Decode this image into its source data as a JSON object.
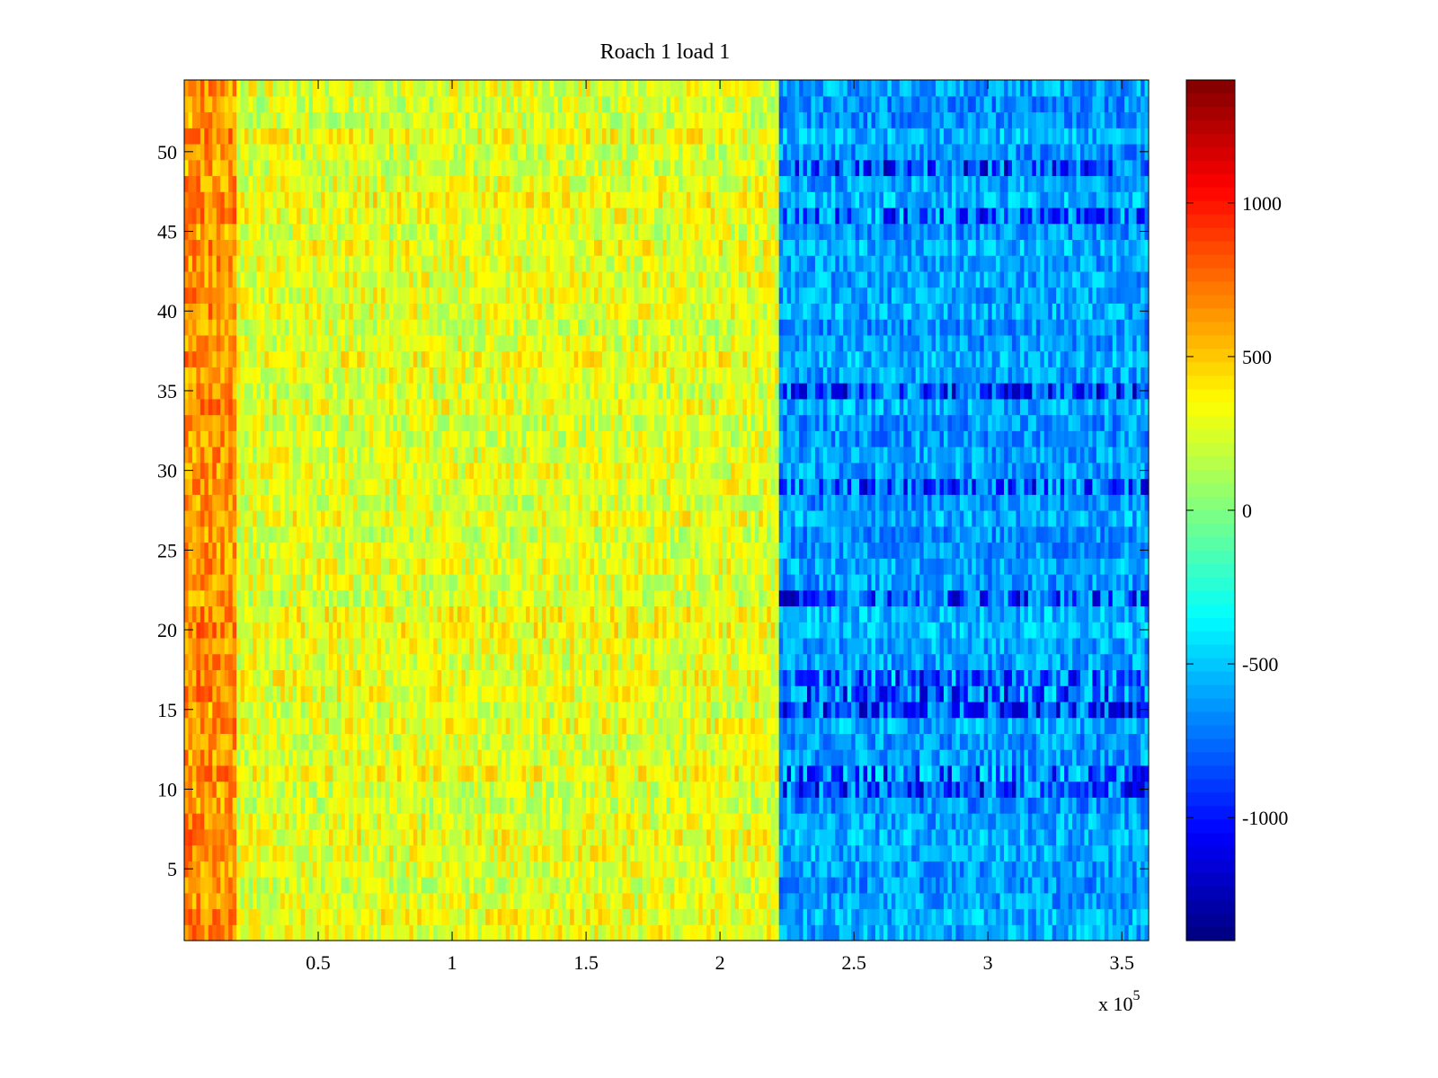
{
  "chart_data": {
    "type": "heatmap",
    "title": "Roach 1 load 1",
    "xlabel": "",
    "ylabel": "",
    "x_exponent_label": {
      "prefix": "x 10",
      "exponent": "5"
    },
    "xlim": [
      0,
      3.6
    ],
    "ylim": [
      0.5,
      54.5
    ],
    "x_ticks": [
      0.5,
      1,
      1.5,
      2,
      2.5,
      3,
      3.5
    ],
    "x_tick_labels": [
      "0.5",
      "1",
      "1.5",
      "2",
      "2.5",
      "3",
      "3.5"
    ],
    "y_ticks": [
      5,
      10,
      15,
      20,
      25,
      30,
      35,
      40,
      45,
      50
    ],
    "y_tick_labels": [
      "5",
      "10",
      "15",
      "20",
      "25",
      "30",
      "35",
      "40",
      "45",
      "50"
    ],
    "rows": 54,
    "value_range": [
      -1400,
      1400
    ],
    "colormap": "jet",
    "colorbar": {
      "position": "right",
      "ticks": [
        1000,
        500,
        0,
        -500,
        -1000
      ],
      "tick_labels": [
        "1000",
        "500",
        "0",
        "-500",
        "-1000"
      ]
    },
    "regions": [
      {
        "x_range": [
          0,
          0.2
        ],
        "mean_value": 650,
        "description": "left edge warm"
      },
      {
        "x_range": [
          0.2,
          2.22
        ],
        "mean_value": 280
      },
      {
        "x_range": [
          2.22,
          3.6
        ],
        "mean_value": -600
      }
    ],
    "dark_rows": [
      10,
      11,
      15,
      16,
      17,
      22,
      29,
      35,
      46,
      49
    ],
    "grid": false
  }
}
